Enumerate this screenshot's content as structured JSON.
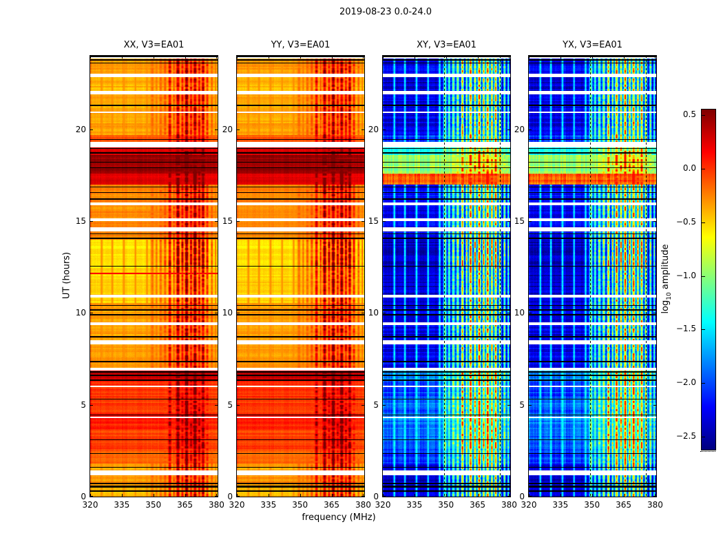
{
  "chart_data": {
    "type": "heatmap",
    "title": "2019-08-23 0.0-24.0",
    "xlabel": "frequency (MHz)",
    "ylabel": "UT (hours)",
    "x_range": [
      320,
      380.5
    ],
    "y_range": [
      0,
      24
    ],
    "xticks": [
      320,
      335,
      350,
      365,
      380
    ],
    "yticks": [
      0,
      5,
      10,
      15,
      20
    ],
    "colormap": "jet",
    "value_range": [
      -2.62,
      0.55
    ],
    "grid": false,
    "panels": [
      {
        "title": "XX, V3=EA01",
        "type": "parallel"
      },
      {
        "title": "YY, V3=EA01",
        "type": "parallel"
      },
      {
        "title": "XY, V3=EA01",
        "type": "cross"
      },
      {
        "title": "YX, V3=EA01",
        "type": "cross"
      }
    ],
    "colorbar": {
      "label": "log10 amplitude",
      "label_prefix": "log",
      "label_sub": "10",
      "label_suffix": " amplitude",
      "ticks": [
        "0.5",
        "0.0",
        "−0.5",
        "−1.0",
        "−1.5",
        "−2.0",
        "−2.5"
      ],
      "tick_values": [
        0.5,
        0.0,
        -0.5,
        -1.0,
        -1.5,
        -2.0,
        -2.5
      ]
    },
    "time_segments": [
      [
        0.0,
        0.6,
        -0.45,
        -2.4,
        0.9
      ],
      [
        0.6,
        1.2,
        -0.33,
        -2.45,
        0.9
      ],
      [
        1.2,
        1.8,
        -0.42,
        -2.35,
        0.9
      ],
      [
        1.8,
        2.6,
        -0.18,
        -2.1,
        1.0
      ],
      [
        2.6,
        3.6,
        -0.06,
        -1.95,
        1.15
      ],
      [
        3.6,
        4.5,
        0.02,
        -1.85,
        1.2
      ],
      [
        4.5,
        5.4,
        -0.06,
        -1.95,
        1.15
      ],
      [
        5.4,
        6.3,
        -0.02,
        -2.05,
        1.1
      ],
      [
        6.3,
        7.02,
        0.3,
        -1.8,
        1.1
      ],
      [
        7.02,
        8.3,
        -0.36,
        -2.3,
        1.0
      ],
      [
        8.3,
        9.5,
        -0.4,
        -2.35,
        0.95
      ],
      [
        9.5,
        10.55,
        -0.36,
        -2.3,
        1.0
      ],
      [
        10.55,
        12.4,
        -0.55,
        -2.4,
        0.95
      ],
      [
        12.4,
        14.0,
        -0.6,
        -2.45,
        1.35
      ],
      [
        14.0,
        14.65,
        -0.3,
        -2.25,
        1.1
      ],
      [
        14.65,
        16.0,
        -0.33,
        -2.3,
        1.0
      ],
      [
        16.0,
        17.0,
        -0.28,
        -2.25,
        1.05
      ],
      [
        17.0,
        17.6,
        0.22,
        -0.15,
        1.1
      ],
      [
        17.6,
        18.6,
        0.45,
        -0.95,
        1.2
      ],
      [
        18.6,
        19.3,
        0.25,
        -1.5,
        1.1
      ],
      [
        19.3,
        19.7,
        -0.12,
        -2.1,
        1.0
      ],
      [
        19.7,
        21.9,
        -0.4,
        -2.35,
        0.95
      ],
      [
        21.9,
        23.02,
        -0.45,
        -2.4,
        0.9
      ],
      [
        23.02,
        24.01,
        -0.38,
        -2.3,
        1.0
      ]
    ],
    "data_gaps": [
      [
        1.18,
        1.42
      ],
      [
        4.28,
        4.35
      ],
      [
        5.95,
        6.03
      ],
      [
        6.85,
        7.02
      ],
      [
        8.3,
        8.5
      ],
      [
        9.32,
        9.5
      ],
      [
        10.82,
        11.0
      ],
      [
        14.42,
        14.65
      ],
      [
        15.0,
        15.14
      ],
      [
        15.86,
        16.0
      ],
      [
        19.02,
        19.3
      ],
      [
        20.9,
        20.97
      ],
      [
        21.9,
        22.08
      ],
      [
        22.85,
        23.02
      ],
      [
        23.86,
        23.93
      ]
    ],
    "flagged_lines": [
      [
        0.3,
        0.06
      ],
      [
        0.55,
        0.1
      ],
      [
        0.72,
        0.06
      ],
      [
        1.6,
        0.06
      ],
      [
        2.35,
        0.05
      ],
      [
        3.1,
        0.04
      ],
      [
        4.45,
        0.05
      ],
      [
        5.3,
        0.05
      ],
      [
        6.35,
        0.08
      ],
      [
        6.6,
        0.1
      ],
      [
        6.78,
        0.06
      ],
      [
        7.35,
        0.05
      ],
      [
        8.7,
        0.04
      ],
      [
        9.9,
        0.06
      ],
      [
        10.15,
        0.08
      ],
      [
        10.4,
        0.06
      ],
      [
        12.55,
        0.04
      ],
      [
        14.05,
        0.08
      ],
      [
        14.3,
        0.06
      ],
      [
        16.2,
        0.05
      ],
      [
        16.55,
        0.06
      ],
      [
        16.85,
        0.05
      ],
      [
        17.9,
        0.05
      ],
      [
        18.2,
        0.05
      ],
      [
        18.7,
        0.07
      ],
      [
        18.95,
        0.06
      ],
      [
        19.45,
        0.06
      ],
      [
        21.3,
        0.05
      ],
      [
        23.6,
        0.06
      ],
      [
        23.78,
        0.07
      ],
      [
        23.97,
        0.06
      ]
    ],
    "rfi_bands": [
      [
        325.5,
        0.5,
        0.12
      ],
      [
        330.5,
        0.5,
        0.1
      ],
      [
        336.0,
        0.5,
        0.12
      ],
      [
        341.5,
        0.5,
        0.1
      ],
      [
        347.0,
        0.5,
        0.13
      ],
      [
        349.5,
        0.8,
        0.35
      ],
      [
        351.5,
        0.6,
        0.28
      ],
      [
        353.5,
        0.7,
        0.38
      ],
      [
        355.6,
        0.7,
        0.45
      ],
      [
        357.8,
        0.7,
        0.75
      ],
      [
        359.8,
        0.5,
        0.5
      ],
      [
        361.7,
        0.8,
        0.9
      ],
      [
        363.8,
        0.6,
        0.7
      ],
      [
        365.8,
        0.8,
        0.95
      ],
      [
        367.9,
        0.6,
        0.72
      ],
      [
        369.8,
        0.8,
        0.9
      ],
      [
        371.8,
        0.6,
        0.75
      ],
      [
        373.6,
        0.7,
        0.85
      ],
      [
        375.6,
        0.6,
        0.6
      ],
      [
        377.8,
        0.5,
        0.42
      ],
      [
        379.6,
        0.4,
        0.3
      ]
    ],
    "dashed_lines_mhz": [
      349.0,
      375.5
    ],
    "xx_streak": {
      "t": 12.15,
      "level": 0.12
    }
  }
}
